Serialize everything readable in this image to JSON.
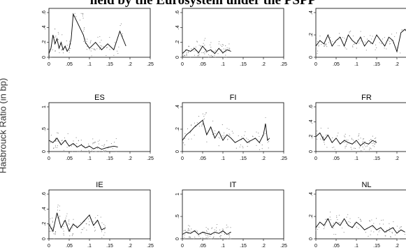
{
  "page": {
    "title": "held by the Eurosystem under the PSPP",
    "ylabel": "Hasbrouck Ratio (in bp)"
  },
  "colors": {
    "series": "#000000",
    "points": "#777777",
    "axis": "#000000"
  },
  "chart_data": [
    {
      "type": "line",
      "panel": "",
      "xlim": [
        0,
        0.25
      ],
      "ylim": [
        0,
        0.6
      ],
      "xticks": [
        "0",
        ".05",
        ".1",
        ".15",
        ".2",
        ".25"
      ],
      "yticks": [
        "0",
        ".2",
        ".4",
        ".6"
      ],
      "series": [
        {
          "x": [
            0.0,
            0.005,
            0.01,
            0.015,
            0.02,
            0.025,
            0.03,
            0.035,
            0.04,
            0.045,
            0.05,
            0.055,
            0.06,
            0.085,
            0.09,
            0.1,
            0.115,
            0.13,
            0.145,
            0.16,
            0.175,
            0.19
          ],
          "y": [
            0.05,
            0.12,
            0.3,
            0.18,
            0.25,
            0.12,
            0.2,
            0.1,
            0.15,
            0.08,
            0.12,
            0.25,
            0.58,
            0.3,
            0.2,
            0.12,
            0.2,
            0.1,
            0.18,
            0.1,
            0.35,
            0.15
          ]
        }
      ]
    },
    {
      "type": "line",
      "panel": "",
      "xlim": [
        0,
        0.25
      ],
      "ylim": [
        0,
        0.6
      ],
      "xticks": [
        "0",
        ".05",
        ".1",
        ".15",
        ".2",
        ".25"
      ],
      "yticks": [
        "0",
        ".2",
        ".4",
        ".6"
      ],
      "series": [
        {
          "x": [
            0.0,
            0.01,
            0.02,
            0.03,
            0.04,
            0.05,
            0.06,
            0.07,
            0.08,
            0.09,
            0.1,
            0.11,
            0.12
          ],
          "y": [
            0.05,
            0.1,
            0.08,
            0.12,
            0.06,
            0.15,
            0.08,
            0.1,
            0.05,
            0.12,
            0.06,
            0.1,
            0.08
          ]
        }
      ]
    },
    {
      "type": "line",
      "panel": "",
      "xlim": [
        0,
        0.25
      ],
      "ylim": [
        0,
        0.4
      ],
      "xticks": [
        "0",
        ".05",
        ".1",
        ".15",
        ".2",
        ".25"
      ],
      "yticks": [
        "0",
        ".2",
        ".4"
      ],
      "series": [
        {
          "x": [
            0.0,
            0.01,
            0.02,
            0.03,
            0.04,
            0.05,
            0.06,
            0.07,
            0.08,
            0.09,
            0.1,
            0.11,
            0.12,
            0.13,
            0.14,
            0.15,
            0.16,
            0.17,
            0.18,
            0.19,
            0.2,
            0.21,
            0.22,
            0.23,
            0.24
          ],
          "y": [
            0.1,
            0.15,
            0.12,
            0.2,
            0.1,
            0.15,
            0.18,
            0.1,
            0.2,
            0.15,
            0.12,
            0.18,
            0.1,
            0.15,
            0.12,
            0.2,
            0.15,
            0.1,
            0.18,
            0.15,
            0.05,
            0.22,
            0.25,
            0.2,
            0.18
          ]
        }
      ]
    },
    {
      "type": "line",
      "panel": "ES",
      "xlim": [
        0,
        0.25
      ],
      "ylim": [
        0,
        1
      ],
      "xticks": [
        "0",
        ".05",
        ".1",
        ".15",
        ".2",
        ".25"
      ],
      "yticks": [
        "0",
        ".5",
        "1"
      ],
      "series": [
        {
          "x": [
            0.0,
            0.01,
            0.02,
            0.03,
            0.04,
            0.05,
            0.06,
            0.07,
            0.08,
            0.09,
            0.1,
            0.11,
            0.12,
            0.13,
            0.14,
            0.15,
            0.16,
            0.17
          ],
          "y": [
            0.25,
            0.2,
            0.3,
            0.15,
            0.25,
            0.12,
            0.18,
            0.1,
            0.15,
            0.08,
            0.12,
            0.06,
            0.1,
            0.05,
            0.08,
            0.1,
            0.12,
            0.1
          ]
        }
      ]
    },
    {
      "type": "line",
      "panel": "FI",
      "xlim": [
        0,
        0.25
      ],
      "ylim": [
        0,
        0.4
      ],
      "xticks": [
        "0",
        ".05",
        ".1",
        ".15",
        ".2",
        ".25"
      ],
      "yticks": [
        "0",
        ".2",
        ".4"
      ],
      "series": [
        {
          "x": [
            0.0,
            0.01,
            0.02,
            0.03,
            0.04,
            0.05,
            0.06,
            0.07,
            0.08,
            0.09,
            0.1,
            0.11,
            0.12,
            0.13,
            0.14,
            0.15,
            0.16,
            0.17,
            0.18,
            0.19,
            0.2,
            0.205,
            0.21,
            0.215
          ],
          "y": [
            0.1,
            0.15,
            0.18,
            0.22,
            0.25,
            0.28,
            0.15,
            0.22,
            0.12,
            0.18,
            0.1,
            0.15,
            0.12,
            0.08,
            0.1,
            0.12,
            0.08,
            0.1,
            0.12,
            0.08,
            0.15,
            0.25,
            0.1,
            0.12
          ]
        }
      ]
    },
    {
      "type": "line",
      "panel": "FR",
      "xlim": [
        0,
        0.25
      ],
      "ylim": [
        0,
        0.6
      ],
      "xticks": [
        "0",
        ".05",
        ".1",
        ".15",
        ".2",
        ".25"
      ],
      "yticks": [
        "0",
        ".2",
        ".4",
        ".6"
      ],
      "series": [
        {
          "x": [
            0.0,
            0.01,
            0.02,
            0.03,
            0.04,
            0.05,
            0.06,
            0.07,
            0.08,
            0.09,
            0.1,
            0.11,
            0.12,
            0.13,
            0.14,
            0.15
          ],
          "y": [
            0.2,
            0.25,
            0.15,
            0.22,
            0.12,
            0.18,
            0.1,
            0.15,
            0.12,
            0.1,
            0.15,
            0.08,
            0.12,
            0.1,
            0.15,
            0.12
          ]
        }
      ]
    },
    {
      "type": "line",
      "panel": "IE",
      "xlim": [
        0,
        0.25
      ],
      "ylim": [
        0,
        0.6
      ],
      "xticks": [
        "0",
        ".05",
        ".1",
        ".15",
        ".2",
        ".25"
      ],
      "yticks": [
        "0",
        ".2",
        ".4",
        ".6"
      ],
      "series": [
        {
          "x": [
            0.0,
            0.01,
            0.02,
            0.03,
            0.04,
            0.05,
            0.06,
            0.07,
            0.08,
            0.1,
            0.11,
            0.12,
            0.13,
            0.14
          ],
          "y": [
            0.2,
            0.1,
            0.35,
            0.15,
            0.25,
            0.1,
            0.2,
            0.15,
            0.2,
            0.32,
            0.18,
            0.25,
            0.12,
            0.15
          ]
        }
      ]
    },
    {
      "type": "line",
      "panel": "IT",
      "xlim": [
        0,
        0.25
      ],
      "ylim": [
        0,
        1
      ],
      "xticks": [
        "0",
        ".05",
        ".1",
        ".15",
        ".2",
        ".25"
      ],
      "yticks": [
        "0",
        ".5",
        "1"
      ],
      "series": [
        {
          "x": [
            0.0,
            0.01,
            0.02,
            0.03,
            0.04,
            0.05,
            0.06,
            0.07,
            0.08,
            0.09,
            0.1,
            0.11,
            0.12
          ],
          "y": [
            0.1,
            0.15,
            0.12,
            0.18,
            0.1,
            0.15,
            0.12,
            0.1,
            0.15,
            0.12,
            0.18,
            0.1,
            0.15
          ]
        }
      ]
    },
    {
      "type": "line",
      "panel": "NL",
      "xlim": [
        0,
        0.25
      ],
      "ylim": [
        0,
        0.4
      ],
      "xticks": [
        "0",
        ".05",
        ".1",
        ".15",
        ".2",
        ".25"
      ],
      "yticks": [
        "0",
        ".2",
        ".4"
      ],
      "series": [
        {
          "x": [
            0.0,
            0.01,
            0.02,
            0.03,
            0.04,
            0.05,
            0.06,
            0.07,
            0.08,
            0.09,
            0.1,
            0.11,
            0.12,
            0.13,
            0.14,
            0.15,
            0.16,
            0.17,
            0.18,
            0.19,
            0.2,
            0.21,
            0.22
          ],
          "y": [
            0.1,
            0.15,
            0.12,
            0.18,
            0.1,
            0.15,
            0.12,
            0.18,
            0.12,
            0.1,
            0.15,
            0.12,
            0.08,
            0.1,
            0.12,
            0.08,
            0.1,
            0.06,
            0.08,
            0.1,
            0.05,
            0.08,
            0.06
          ]
        }
      ]
    }
  ]
}
